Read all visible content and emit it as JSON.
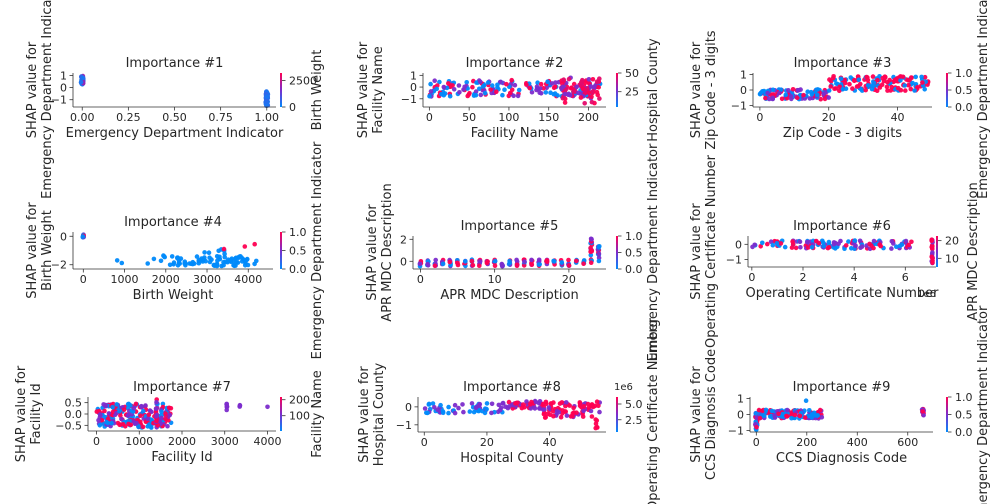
{
  "figure": {
    "colormap": [
      "#008afb",
      "#7c2ccc",
      "#ff0052"
    ]
  },
  "chart_data": [
    {
      "type": "scatter",
      "title": "Importance #1",
      "xlabel": "Emergency Department Indicator",
      "ylabel": [
        "SHAP value for",
        "Emergency Department Indicator"
      ],
      "xlim": [
        -0.05,
        1.05
      ],
      "ylim": [
        -1.6,
        1.2
      ],
      "xticks": [
        0.0,
        0.25,
        0.5,
        0.75,
        1.0
      ],
      "xtick_labels": [
        "0.00",
        "0.25",
        "0.50",
        "0.75",
        "1.00"
      ],
      "yticks": [
        1,
        0,
        -1
      ],
      "ytick_labels": [
        "1",
        "0",
        "−1"
      ],
      "colorbar": {
        "label": "Birth Weight",
        "ticks": [
          "2500",
          "0"
        ],
        "tick_fracs": [
          0.78,
          0.0
        ]
      },
      "clusters": [
        {
          "x": 0.0,
          "jx": 0.006,
          "ymin": 0.2,
          "ymax": 0.95,
          "n": 40,
          "colors": [
            0.2,
            0.6,
            0.1
          ]
        },
        {
          "x": 1.0,
          "jx": 0.006,
          "ymin": -1.5,
          "ymax": -0.3,
          "n": 55,
          "colors": [
            0.1,
            0.2,
            0.15
          ]
        }
      ]
    },
    {
      "type": "scatter",
      "title": "Importance #2",
      "xlabel": "Facility Name",
      "ylabel": [
        "SHAP value for",
        "Facility Name"
      ],
      "xlim": [
        -8,
        222
      ],
      "ylim": [
        -1.7,
        1.2
      ],
      "xticks": [
        0,
        50,
        100,
        150,
        200
      ],
      "xtick_labels": [
        "0",
        "50",
        "100",
        "150",
        "200"
      ],
      "yticks": [
        1,
        0,
        -1
      ],
      "ytick_labels": [
        "1",
        "0",
        "−1"
      ],
      "colorbar": {
        "label": "Hospital County",
        "ticks": [
          "50",
          "25"
        ],
        "tick_fracs": [
          1.0,
          0.45
        ]
      },
      "clusters": [
        {
          "x": 0,
          "x2": 215,
          "ymin": -0.8,
          "ymax": 0.6,
          "n": 190,
          "colors": [
            0.0,
            0.5,
            1.0
          ]
        },
        {
          "x": 165,
          "x2": 215,
          "ymin": -1.4,
          "ymax": 0.8,
          "n": 60,
          "colors": [
            1.0,
            0.9,
            0.5
          ]
        }
      ]
    },
    {
      "type": "scatter",
      "title": "Importance #3",
      "xlabel": "Zip Code - 3 digits",
      "ylabel": [
        "SHAP value for",
        "Zip Code - 3 digits"
      ],
      "xlim": [
        -2,
        50
      ],
      "ylim": [
        -1.1,
        1.1
      ],
      "xticks": [
        0,
        20,
        40
      ],
      "xtick_labels": [
        "0",
        "20",
        "40"
      ],
      "yticks": [
        1,
        0,
        -1
      ],
      "ytick_labels": [
        "1",
        "0",
        "−1"
      ],
      "colorbar": {
        "label": "Emergency Department Indicator",
        "ticks": [
          "1.0",
          "0.5",
          "0.0"
        ],
        "tick_fracs": [
          1.0,
          0.5,
          0.0
        ]
      },
      "clusters": [
        {
          "x": 0,
          "x2": 20,
          "ymin": -0.6,
          "ymax": 0.05,
          "n": 110,
          "colors": [
            0.0,
            1.0,
            0.5
          ]
        },
        {
          "x": 20,
          "x2": 49,
          "ymin": -0.05,
          "ymax": 0.9,
          "n": 150,
          "colors": [
            0.0,
            1.0,
            1.0
          ]
        }
      ]
    },
    {
      "type": "scatter",
      "title": "Importance #4",
      "xlabel": "Birth Weight",
      "ylabel": [
        "SHAP value for",
        "Birth Weight"
      ],
      "xlim": [
        -250,
        4600
      ],
      "ylim": [
        -2.3,
        0.3
      ],
      "xticks": [
        0,
        1000,
        2000,
        3000,
        4000
      ],
      "xtick_labels": [
        "0",
        "1000",
        "2000",
        "3000",
        "4000"
      ],
      "yticks": [
        0,
        -2
      ],
      "ytick_labels": [
        "0",
        "−2"
      ],
      "colorbar": {
        "label": "Emergency Department Indicator",
        "ticks": [
          "1.0",
          "0.5",
          "0.0"
        ],
        "tick_fracs": [
          1.0,
          0.5,
          0.0
        ]
      },
      "clusters": [
        {
          "x": 0,
          "jx": 15,
          "ymin": -0.1,
          "ymax": 0.15,
          "n": 8,
          "colors": [
            0.5,
            1.0,
            0.0
          ]
        },
        {
          "x": 800,
          "x2": 2100,
          "ymin": -2.1,
          "ymax": -1.3,
          "n": 8,
          "colors": [
            0.0
          ]
        },
        {
          "x": 2100,
          "x2": 4200,
          "ymin": -2.1,
          "ymax": -1.4,
          "n": 80,
          "colors": [
            0.0
          ]
        },
        {
          "x": 2900,
          "x2": 3600,
          "ymin": -1.4,
          "ymax": -0.9,
          "n": 6,
          "colors": [
            0.0
          ]
        },
        {
          "x": 3350,
          "x2": 4400,
          "ymin": -0.9,
          "ymax": -0.55,
          "n": 3,
          "colors": [
            1.0
          ]
        }
      ]
    },
    {
      "type": "scatter",
      "title": "Importance #5",
      "xlabel": "APR MDC Description",
      "ylabel": [
        "SHAP value for",
        "APR MDC Description"
      ],
      "xlim": [
        -1,
        25
      ],
      "ylim": [
        -0.7,
        2.3
      ],
      "xticks": [
        0,
        10,
        20
      ],
      "xtick_labels": [
        "0",
        "10",
        "20"
      ],
      "yticks": [
        2,
        0
      ],
      "ytick_labels": [
        "2",
        "0"
      ],
      "colorbar": {
        "label": "Emergency Department Indicator",
        "ticks": [
          "1.0",
          "0.5",
          "0.0"
        ],
        "tick_fracs": [
          1.0,
          0.5,
          0.0
        ]
      },
      "columns": {
        "from": 0,
        "to": 22,
        "step": 1,
        "ymin": -0.45,
        "ymax": 0.15,
        "n": 6,
        "colors": [
          0.0,
          1.0,
          0.5
        ]
      },
      "clusters": [
        {
          "x": 23,
          "jx": 0.1,
          "ymin": -0.3,
          "ymax": 2.1,
          "n": 18,
          "colors": [
            1.0,
            0.0,
            0.5
          ]
        },
        {
          "x": 24,
          "jx": 0.1,
          "ymin": 0.0,
          "ymax": 1.5,
          "n": 14,
          "colors": [
            1.0,
            0.0,
            0.5
          ]
        }
      ]
    },
    {
      "type": "scatter",
      "title": "Importance #6",
      "xlabel": "Operating Certificate Number",
      "ylabel": [
        "SHAP value for",
        "Operating Certificate Number"
      ],
      "xlim": [
        -0.15,
        7.2
      ],
      "ylim": [
        -1.5,
        0.55
      ],
      "xticks": [
        0,
        2,
        4,
        6
      ],
      "xtick_labels": [
        "0",
        "2",
        "4",
        "6"
      ],
      "offset_text": "1e6",
      "yticks": [
        0,
        -1
      ],
      "ytick_labels": [
        "0",
        "−1"
      ],
      "colorbar": {
        "label": "APR MDC Description",
        "ticks": [
          "20",
          "10"
        ],
        "tick_fracs": [
          0.85,
          0.28
        ]
      },
      "clusters": [
        {
          "x": 0,
          "x2": 6.3,
          "ymin": -0.3,
          "ymax": 0.25,
          "n": 120,
          "colors": [
            0.0,
            0.5,
            1.0
          ]
        },
        {
          "x": 7.05,
          "jx": 0.02,
          "ymin": -1.3,
          "ymax": 0.4,
          "n": 22,
          "colors": [
            1.0,
            0.5
          ]
        }
      ]
    },
    {
      "type": "scatter",
      "title": "Importance #7",
      "xlabel": "Facility Id",
      "ylabel": [
        "SHAP value for",
        "Facility Id"
      ],
      "xlim": [
        -200,
        4200
      ],
      "ylim": [
        -0.75,
        0.75
      ],
      "xticks": [
        0,
        1000,
        2000,
        3000,
        4000
      ],
      "xtick_labels": [
        "0",
        "1000",
        "2000",
        "3000",
        "4000"
      ],
      "yticks": [
        0.5,
        0.0,
        -0.5
      ],
      "ytick_labels": [
        "0.5",
        "0.0",
        "−0.5"
      ],
      "colorbar": {
        "label": "Facility Name",
        "ticks": [
          "200",
          "100"
        ],
        "tick_fracs": [
          0.92,
          0.45
        ]
      },
      "clusters": [
        {
          "x": 0,
          "x2": 1750,
          "ymin": -0.6,
          "ymax": 0.45,
          "n": 220,
          "colors": [
            0.0,
            0.5,
            1.0
          ]
        },
        {
          "x": 1400,
          "jx": 10,
          "ymin": -0.5,
          "ymax": 0.7,
          "n": 16,
          "colors": [
            0.5,
            1.0
          ]
        },
        {
          "x": 3050,
          "jx": 8,
          "ymin": 0.0,
          "ymax": 0.5,
          "n": 6,
          "colors": [
            0.5
          ]
        },
        {
          "x": 3350,
          "jx": 8,
          "ymin": 0.25,
          "ymax": 0.45,
          "n": 3,
          "colors": [
            0.5
          ]
        },
        {
          "x": 4000,
          "jx": 5,
          "ymin": 0.3,
          "ymax": 0.38,
          "n": 1,
          "colors": [
            0.5
          ]
        }
      ]
    },
    {
      "type": "scatter",
      "title": "Importance #8",
      "xlabel": "Hospital County",
      "ylabel": [
        "SHAP value for",
        "Hospital County"
      ],
      "xlim": [
        -2,
        58
      ],
      "ylim": [
        -1.4,
        0.55
      ],
      "xticks": [
        0,
        20,
        40
      ],
      "xtick_labels": [
        "0",
        "20",
        "40"
      ],
      "yticks": [
        0,
        -1
      ],
      "ytick_labels": [
        "0",
        "−1"
      ],
      "colorbar": {
        "label": "Operating Certificate Number",
        "ticks": [
          "5.0",
          "2.5"
        ],
        "tick_fracs": [
          0.8,
          0.35
        ],
        "offset_text": "1e6"
      },
      "clusters": [
        {
          "x": 0,
          "x2": 25,
          "ymin": -0.35,
          "ymax": 0.2,
          "n": 55,
          "colors": [
            0.0,
            0.5
          ]
        },
        {
          "x": 25,
          "x2": 38,
          "ymin": -0.1,
          "ymax": 0.35,
          "n": 50,
          "colors": [
            0.5,
            0.5,
            1.0
          ]
        },
        {
          "x": 38,
          "x2": 56,
          "ymin": -0.6,
          "ymax": 0.3,
          "n": 80,
          "colors": [
            1.0,
            1.0,
            0.5
          ]
        },
        {
          "x": 55,
          "jx": 0.3,
          "ymin": -1.3,
          "ymax": -0.5,
          "n": 6,
          "colors": [
            1.0
          ]
        }
      ]
    },
    {
      "type": "scatter",
      "title": "Importance #9",
      "xlabel": "CCS Diagnosis Code",
      "ylabel": [
        "SHAP value for",
        "CCS Diagnosis Code"
      ],
      "xlim": [
        -25,
        700
      ],
      "ylim": [
        -1.1,
        1.1
      ],
      "xticks": [
        0,
        200,
        400,
        600
      ],
      "xtick_labels": [
        "0",
        "200",
        "400",
        "600"
      ],
      "yticks": [
        1,
        0,
        -1
      ],
      "ytick_labels": [
        "1",
        "0",
        "−1"
      ],
      "colorbar": {
        "label": "Emergency Department Indicator",
        "ticks": [
          "1.0",
          "0.5",
          "0.0"
        ],
        "tick_fracs": [
          1.0,
          0.5,
          0.0
        ]
      },
      "clusters": [
        {
          "x": 0,
          "jx": 4,
          "ymin": -1.0,
          "ymax": 0.1,
          "n": 25,
          "colors": [
            1.0,
            0.0,
            0.5
          ]
        },
        {
          "x": 10,
          "x2": 260,
          "ymin": -0.25,
          "ymax": 0.3,
          "n": 130,
          "colors": [
            0.0,
            0.0,
            1.0,
            0.5
          ]
        },
        {
          "x": 200,
          "jx": 4,
          "ymin": 0.5,
          "ymax": 0.95,
          "n": 1,
          "colors": [
            0.0
          ]
        },
        {
          "x": 660,
          "jx": 4,
          "ymin": -0.05,
          "ymax": 0.35,
          "n": 14,
          "colors": [
            1.0,
            1.0,
            0.5
          ]
        }
      ]
    }
  ]
}
